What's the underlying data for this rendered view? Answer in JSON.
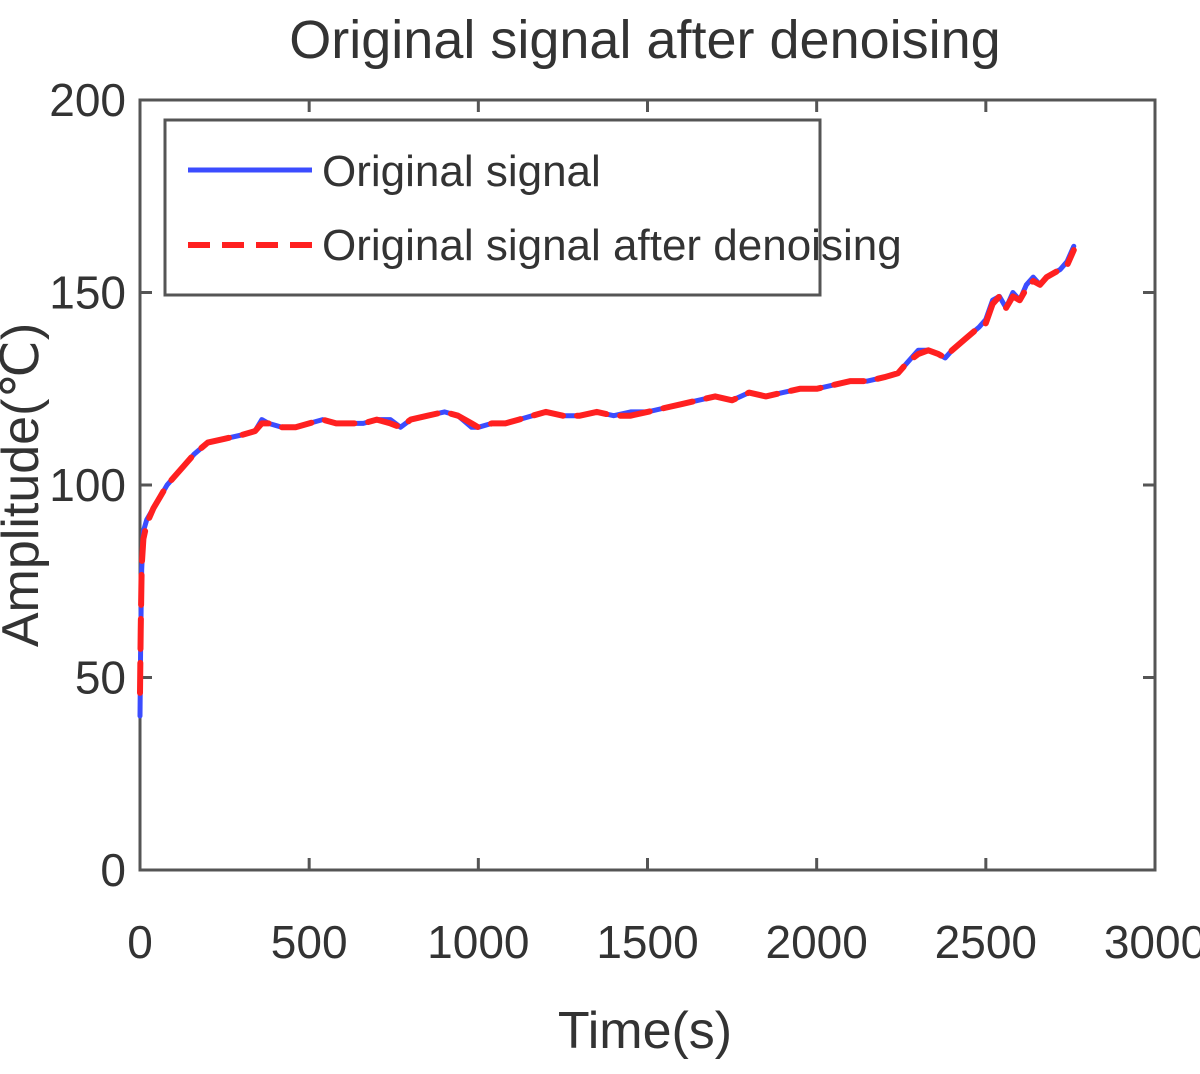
{
  "chart_data": {
    "type": "line",
    "title": "Original signal after denoising",
    "xlabel": "Time(s)",
    "ylabel": "Amplitude(℃)",
    "xlim": [
      0,
      3000
    ],
    "ylim": [
      0,
      200
    ],
    "xticks": [
      0,
      500,
      1000,
      1500,
      2000,
      2500,
      3000
    ],
    "yticks": [
      0,
      50,
      100,
      150,
      200
    ],
    "grid": false,
    "legend_position": "top-left",
    "series": [
      {
        "name": "Original signal",
        "color": "#3b4cff",
        "style": "solid",
        "x": [
          0,
          2,
          5,
          10,
          20,
          40,
          60,
          80,
          100,
          130,
          160,
          200,
          250,
          300,
          340,
          360,
          380,
          420,
          460,
          500,
          540,
          580,
          620,
          660,
          700,
          740,
          770,
          800,
          850,
          900,
          940,
          980,
          1000,
          1040,
          1080,
          1120,
          1160,
          1200,
          1250,
          1300,
          1350,
          1400,
          1450,
          1500,
          1550,
          1600,
          1650,
          1700,
          1750,
          1800,
          1850,
          1900,
          1950,
          2000,
          2050,
          2100,
          2150,
          2200,
          2240,
          2270,
          2300,
          2330,
          2360,
          2380,
          2400,
          2440,
          2480,
          2500,
          2520,
          2540,
          2560,
          2580,
          2600,
          2620,
          2640,
          2660,
          2680,
          2700,
          2720,
          2740,
          2760
        ],
        "y": [
          40,
          60,
          78,
          88,
          91,
          94,
          97,
          100,
          102,
          105,
          108,
          111,
          112,
          113,
          114,
          117,
          116,
          115,
          115,
          116,
          117,
          116,
          116,
          116,
          117,
          117,
          115,
          117,
          118,
          119,
          118,
          115,
          115,
          116,
          116,
          117,
          118,
          119,
          118,
          118,
          119,
          118,
          119,
          119,
          120,
          121,
          122,
          123,
          122,
          124,
          123,
          124,
          125,
          125,
          126,
          127,
          127,
          128,
          129,
          132,
          135,
          135,
          134,
          133,
          135,
          138,
          141,
          143,
          148,
          149,
          146,
          150,
          148,
          152,
          154,
          152,
          154,
          155,
          156,
          158,
          162
        ]
      },
      {
        "name": "Original signal after denoising",
        "color": "#ff2020",
        "style": "dashed",
        "x": [
          0,
          2,
          5,
          10,
          20,
          40,
          60,
          80,
          100,
          130,
          160,
          200,
          250,
          300,
          340,
          360,
          380,
          420,
          460,
          500,
          540,
          580,
          620,
          660,
          700,
          740,
          770,
          800,
          850,
          900,
          940,
          980,
          1000,
          1040,
          1080,
          1120,
          1160,
          1200,
          1250,
          1300,
          1350,
          1400,
          1450,
          1500,
          1550,
          1600,
          1650,
          1700,
          1750,
          1800,
          1850,
          1900,
          1950,
          2000,
          2050,
          2100,
          2150,
          2200,
          2240,
          2270,
          2300,
          2330,
          2360,
          2380,
          2400,
          2440,
          2480,
          2500,
          2520,
          2540,
          2560,
          2580,
          2600,
          2620,
          2640,
          2660,
          2680,
          2700,
          2720,
          2740,
          2760
        ],
        "y": [
          46,
          62,
          79,
          86,
          90,
          94,
          97,
          100,
          102,
          105,
          108,
          111,
          112,
          113,
          114,
          116,
          116,
          115,
          115,
          116,
          117,
          116,
          116,
          116,
          117,
          116,
          115,
          117,
          118,
          119,
          118,
          116,
          115,
          116,
          116,
          117,
          118,
          119,
          118,
          118,
          119,
          118,
          118,
          119,
          120,
          121,
          122,
          123,
          122,
          124,
          123,
          124,
          125,
          125,
          126,
          127,
          127,
          128,
          129,
          132,
          134,
          135,
          134,
          133,
          135,
          138,
          141,
          142,
          147,
          149,
          146,
          149,
          148,
          151,
          153,
          152,
          154,
          155,
          156,
          157,
          161
        ]
      }
    ]
  }
}
